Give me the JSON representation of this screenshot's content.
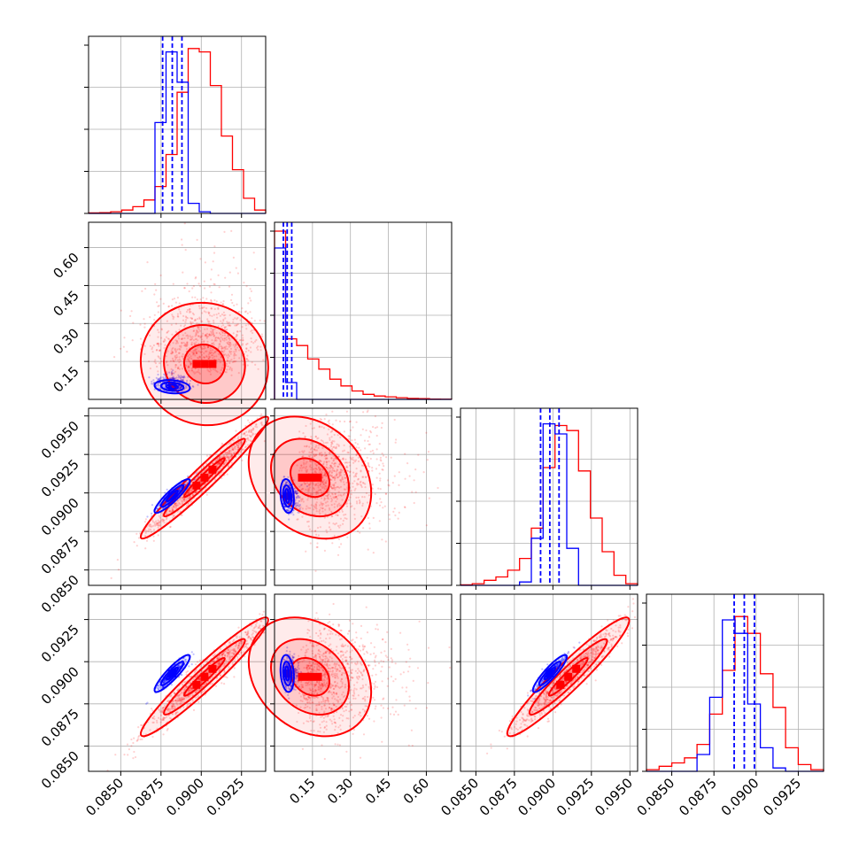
{
  "chart_data": {
    "type": "corner",
    "n_params": 4,
    "grid": true,
    "series": [
      {
        "color": "#ff0000",
        "means": [
          0.0902,
          0.14,
          0.091,
          0.0891
        ],
        "sds": [
          0.0018,
          0.11,
          0.0018,
          0.0016
        ],
        "corrs": [
          [
            0,
            1,
            -0.05
          ],
          [
            0,
            2,
            0.97
          ],
          [
            0,
            3,
            0.96
          ],
          [
            1,
            2,
            -0.25
          ],
          [
            1,
            3,
            -0.25
          ],
          [
            2,
            3,
            0.95
          ]
        ]
      },
      {
        "color": "#0000ff",
        "means": [
          0.0882,
          0.05,
          0.0898,
          0.0893
        ],
        "sds": [
          0.0005,
          0.012,
          0.0005,
          0.0005
        ],
        "corrs": [
          [
            0,
            1,
            -0.2
          ],
          [
            0,
            2,
            0.9
          ],
          [
            0,
            3,
            0.9
          ],
          [
            1,
            2,
            -0.2
          ],
          [
            1,
            3,
            -0.2
          ],
          [
            2,
            3,
            0.9
          ]
        ]
      }
    ],
    "quantile_lines_blue": [
      [
        0.0876,
        0.0882,
        0.0888
      ],
      [
        0.035,
        0.05,
        0.068
      ],
      [
        0.0892,
        0.0898,
        0.0904
      ],
      [
        0.0887,
        0.0893,
        0.0899
      ]
    ],
    "hist_red": [
      [
        0.003,
        0.005,
        0.01,
        0.02,
        0.04,
        0.08,
        0.16,
        0.35,
        0.72,
        0.98,
        0.96,
        0.76,
        0.46,
        0.26,
        0.09,
        0.02
      ],
      [
        1.0,
        0.36,
        0.32,
        0.24,
        0.18,
        0.12,
        0.08,
        0.05,
        0.03,
        0.02,
        0.015,
        0.01,
        0.006,
        0.004,
        0.002,
        0.001
      ],
      [
        0.003,
        0.01,
        0.03,
        0.05,
        0.09,
        0.16,
        0.34,
        0.7,
        0.95,
        0.92,
        0.68,
        0.4,
        0.2,
        0.06,
        0.01
      ],
      [
        0.01,
        0.03,
        0.05,
        0.08,
        0.16,
        0.34,
        0.6,
        0.92,
        0.82,
        0.58,
        0.38,
        0.14,
        0.04,
        0.01
      ]
    ],
    "hist_blue": [
      [
        0.0,
        0.0,
        0.0,
        0.0,
        0.0,
        0.0,
        0.54,
        0.96,
        0.78,
        0.06,
        0.01,
        0.0,
        0.0,
        0.0,
        0.0,
        0.0
      ],
      [
        0.9,
        0.1,
        0.0,
        0.0,
        0.0,
        0.0,
        0.0,
        0.0,
        0.0,
        0.0,
        0.0,
        0.0,
        0.0,
        0.0,
        0.0,
        0.0
      ],
      [
        0.0,
        0.0,
        0.0,
        0.0,
        0.0,
        0.02,
        0.28,
        0.96,
        0.9,
        0.22,
        0.0,
        0.0,
        0.0,
        0.0,
        0.0
      ],
      [
        0.0,
        0.0,
        0.0,
        0.0,
        0.1,
        0.44,
        0.9,
        0.82,
        0.4,
        0.14,
        0.02,
        0.0,
        0.0,
        0.0
      ]
    ],
    "axes": [
      {
        "range": [
          0.083,
          0.094
        ],
        "ticks": [
          0.085,
          0.0875,
          0.09,
          0.0925
        ],
        "tick_labels": [
          "0.0850",
          "0.0875",
          "0.0900",
          "0.0925"
        ]
      },
      {
        "range": [
          0.0,
          0.7
        ],
        "ticks": [
          0.15,
          0.3,
          0.45,
          0.6
        ],
        "tick_labels": [
          "0.15",
          "0.30",
          "0.45",
          "0.60"
        ]
      },
      {
        "range": [
          0.084,
          0.0955
        ],
        "ticks": [
          0.085,
          0.0875,
          0.09,
          0.0925,
          0.095
        ],
        "tick_labels": [
          "0.0850",
          "0.0875",
          "0.0900",
          "0.0925",
          "0.0950"
        ]
      },
      {
        "range": [
          0.0835,
          0.094
        ],
        "ticks": [
          0.085,
          0.0875,
          0.09,
          0.0925
        ],
        "tick_labels": [
          "0.0850",
          "0.0875",
          "0.0900",
          "0.0925"
        ]
      }
    ]
  }
}
